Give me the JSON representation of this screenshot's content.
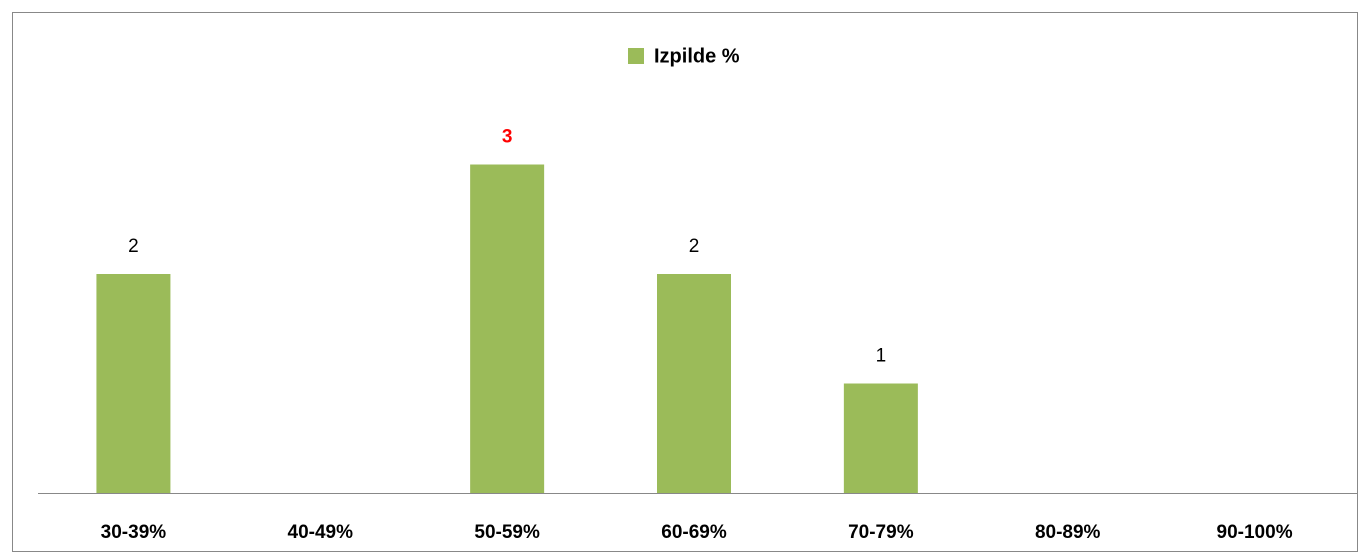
{
  "chart_data": {
    "type": "bar",
    "categories": [
      "30-39%",
      "40-49%",
      "50-59%",
      "60-69%",
      "70-79%",
      "80-89%",
      "90-100%"
    ],
    "series": [
      {
        "name": "Izpilde %",
        "color": "#9bbb59",
        "values": [
          2,
          0,
          3,
          2,
          1,
          0,
          0
        ]
      }
    ],
    "value_label_colors": [
      "#000000",
      "#000000",
      "#ff0000",
      "#000000",
      "#000000",
      "#000000",
      "#000000"
    ],
    "ylim": [
      0,
      4
    ],
    "legend": "top"
  }
}
